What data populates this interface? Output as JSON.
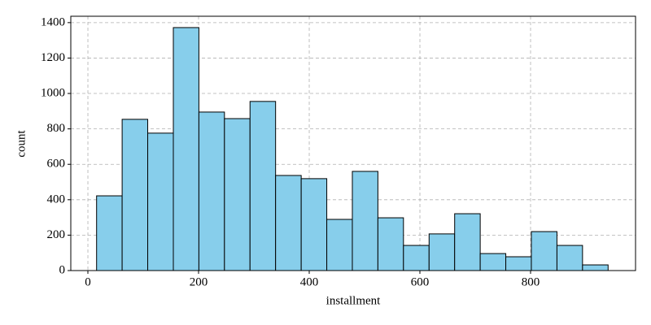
{
  "chart_data": {
    "type": "histogram",
    "xlabel": "installment",
    "ylabel": "count",
    "bins": [
      15.7,
      61.9,
      108.1,
      154.4,
      200.6,
      246.8,
      293.0,
      339.2,
      385.5,
      431.7,
      477.9,
      524.1,
      570.3,
      616.6,
      662.8,
      709.0,
      755.2,
      801.4,
      847.7,
      893.9,
      940.1
    ],
    "values": [
      422,
      854,
      776,
      1372,
      895,
      858,
      955,
      537,
      519,
      289,
      560,
      298,
      142,
      207,
      321,
      96,
      78,
      220,
      142,
      32
    ],
    "color": "#87ceeb",
    "edgecolor": "#000000",
    "xlim": [
      -30.9,
      989.7
    ],
    "ylim": [
      0,
      1436
    ],
    "xticks": [
      0,
      200,
      400,
      600,
      800
    ],
    "yticks": [
      0,
      200,
      400,
      600,
      800,
      1000,
      1200,
      1400
    ],
    "grid": true
  }
}
